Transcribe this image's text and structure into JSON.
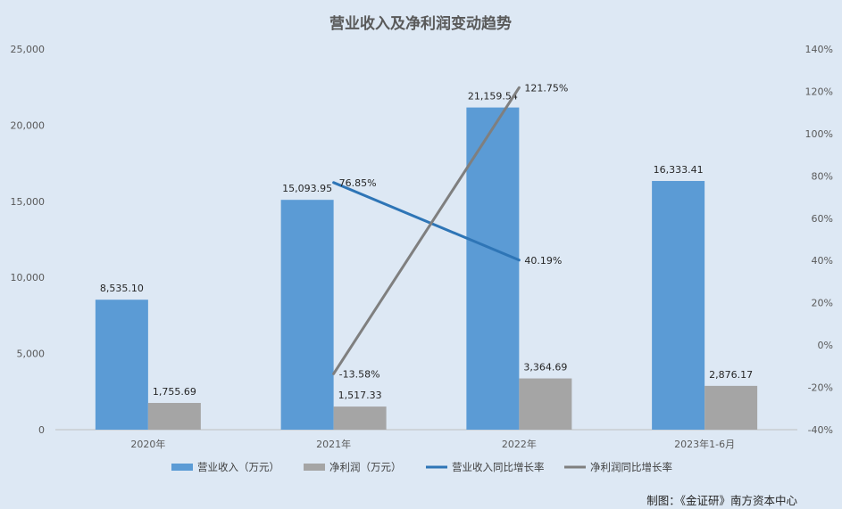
{
  "chart_data": {
    "type": "bar",
    "title": "营业收入及净利润变动趋势",
    "categories": [
      "2020年",
      "2021年",
      "2022年",
      "2023年1-6月"
    ],
    "y_left": {
      "min": 0,
      "max": 25000,
      "ticks": [
        "0",
        "5,000",
        "10,000",
        "15,000",
        "20,000",
        "25,000"
      ]
    },
    "y_right": {
      "min": -40,
      "max": 140,
      "ticks": [
        "-40%",
        "-20%",
        "0%",
        "20%",
        "40%",
        "60%",
        "80%",
        "100%",
        "120%",
        "140%"
      ]
    },
    "bar_series": [
      {
        "name": "营业收入（万元）",
        "color": "#5b9bd5",
        "values": [
          8535.1,
          15093.95,
          21159.54,
          16333.41
        ],
        "labels": [
          "8,535.10",
          "15,093.95",
          "21,159.54",
          "16,333.41"
        ]
      },
      {
        "name": "净利润（万元）",
        "color": "#a5a5a5",
        "values": [
          1755.69,
          1517.33,
          3364.69,
          2876.17
        ],
        "labels": [
          "1,755.69",
          "1,517.33",
          "3,364.69",
          "2,876.17"
        ]
      }
    ],
    "line_series": [
      {
        "name": "营业收入同比增长率",
        "color": "#2e75b6",
        "values": [
          null,
          76.85,
          40.19,
          null
        ],
        "labels": [
          "",
          "76.85%",
          "40.19%",
          ""
        ]
      },
      {
        "name": "净利润同比增长率",
        "color": "#7f7f7f",
        "values": [
          null,
          -13.58,
          121.75,
          null
        ],
        "labels": [
          "",
          "-13.58%",
          "121.75%",
          ""
        ]
      }
    ],
    "legend_position": "bottom",
    "grid": false
  },
  "credit": "制图：《金证研》南方资本中心"
}
